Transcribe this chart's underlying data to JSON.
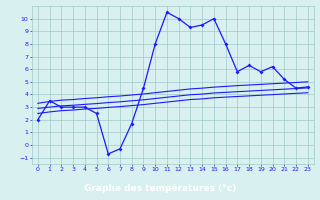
{
  "x": [
    0,
    1,
    2,
    3,
    4,
    5,
    6,
    7,
    8,
    9,
    10,
    11,
    12,
    13,
    14,
    15,
    16,
    17,
    18,
    19,
    20,
    21,
    22,
    23
  ],
  "temp_line": [
    2.0,
    3.5,
    3.0,
    3.0,
    3.0,
    2.5,
    -0.7,
    -0.3,
    1.7,
    4.5,
    8.0,
    10.5,
    10.0,
    9.3,
    9.5,
    10.0,
    8.0,
    5.8,
    6.3,
    5.8,
    6.2,
    5.2,
    4.5,
    4.6
  ],
  "reg_line1": [
    3.3,
    3.45,
    3.55,
    3.6,
    3.68,
    3.74,
    3.82,
    3.88,
    3.96,
    4.04,
    4.14,
    4.24,
    4.34,
    4.44,
    4.5,
    4.58,
    4.64,
    4.7,
    4.75,
    4.8,
    4.85,
    4.9,
    4.95,
    5.0
  ],
  "reg_line2": [
    2.9,
    3.0,
    3.1,
    3.15,
    3.22,
    3.28,
    3.36,
    3.42,
    3.5,
    3.58,
    3.68,
    3.78,
    3.88,
    3.98,
    4.03,
    4.12,
    4.17,
    4.22,
    4.27,
    4.32,
    4.37,
    4.42,
    4.47,
    4.52
  ],
  "reg_line3": [
    2.5,
    2.62,
    2.72,
    2.77,
    2.85,
    2.9,
    2.98,
    3.04,
    3.12,
    3.2,
    3.3,
    3.4,
    3.5,
    3.6,
    3.65,
    3.74,
    3.79,
    3.84,
    3.89,
    3.94,
    3.99,
    4.04,
    4.09,
    4.14
  ],
  "line_color": "#1a1aff",
  "bg_color": "#d8f0f0",
  "grid_color": "#a0c8c8",
  "xlabel": "Graphe des températures (°c)",
  "xlabel_color": "#ffffff",
  "xlabel_bg": "#2222bb",
  "ylim": [
    -1.5,
    11.0
  ],
  "xlim": [
    -0.5,
    23.5
  ],
  "yticks": [
    -1,
    0,
    1,
    2,
    3,
    4,
    5,
    6,
    7,
    8,
    9,
    10
  ],
  "xticks": [
    0,
    1,
    2,
    3,
    4,
    5,
    6,
    7,
    8,
    9,
    10,
    11,
    12,
    13,
    14,
    15,
    16,
    17,
    18,
    19,
    20,
    21,
    22,
    23
  ],
  "tick_fontsize": 4.5,
  "figsize": [
    3.2,
    2.0
  ],
  "dpi": 100
}
